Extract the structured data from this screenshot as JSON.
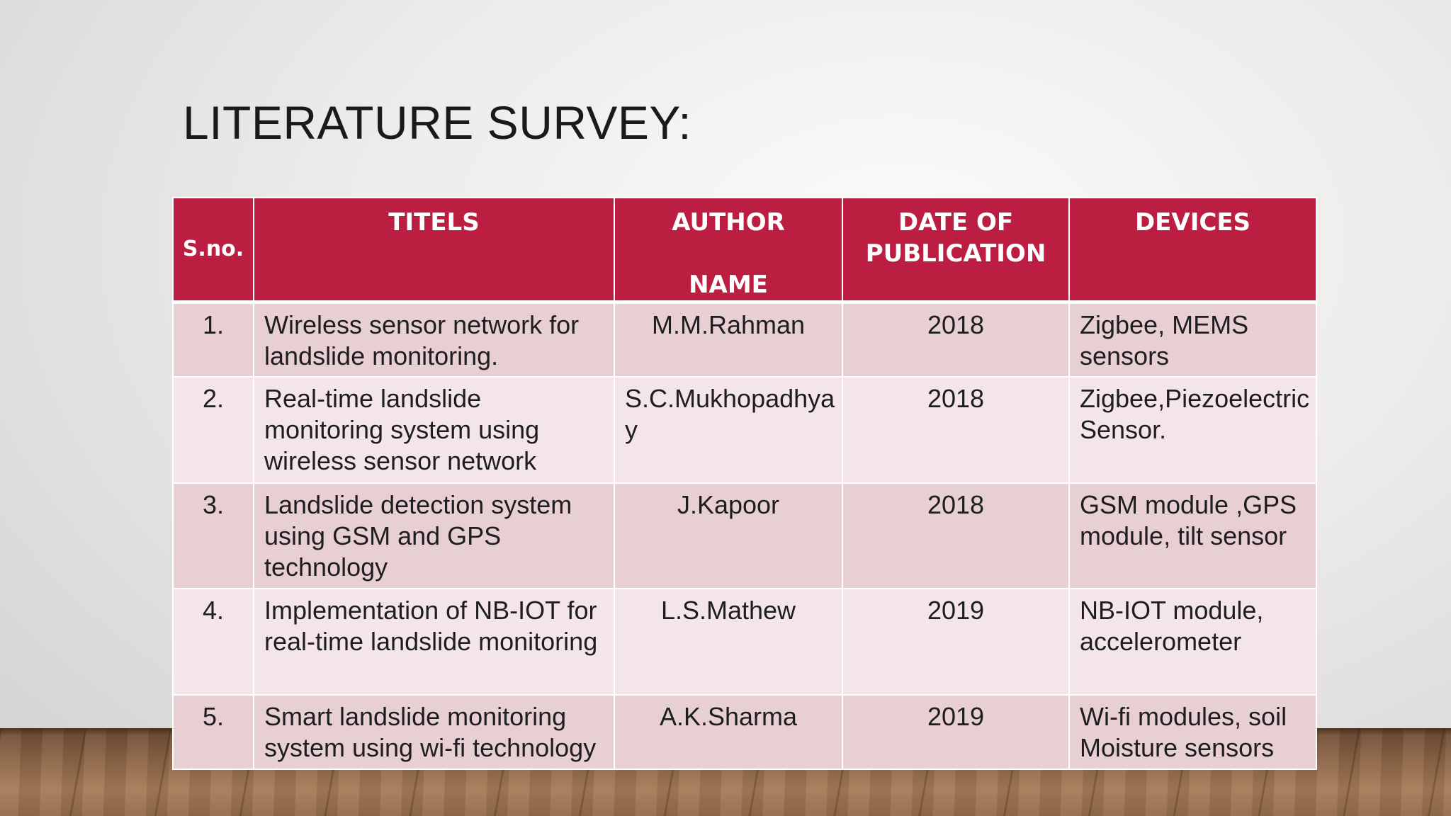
{
  "slide": {
    "title": "LITERATURE SURVEY:"
  },
  "table": {
    "headers": {
      "sno": "S.no.",
      "titles": "TITELS",
      "author_line1": "AUTHOR",
      "author_line2": "NAME",
      "date_line1": "DATE OF",
      "date_line2": "PUBLICATION",
      "devices": "DEVICES"
    },
    "rows": [
      {
        "sno": "1.",
        "title": "Wireless sensor network for landslide monitoring.",
        "author": "M.M.Rahman",
        "year": "2018",
        "devices": "Zigbee, MEMS sensors"
      },
      {
        "sno": "2.",
        "title": "Real-time landslide monitoring system using wireless sensor network",
        "author": "S.C.Mukhopadhya y",
        "year": "2018",
        "devices": "Zigbee,Piezoelectric Sensor."
      },
      {
        "sno": "3.",
        "title": "Landslide detection system using GSM and GPS technology",
        "author": "J.Kapoor",
        "year": "2018",
        "devices": "GSM module ,GPS module, tilt sensor"
      },
      {
        "sno": "4.",
        "title": "Implementation of NB-IOT for real-time landslide monitoring",
        "author": "L.S.Mathew",
        "year": "2019",
        "devices": "NB-IOT module, accelerometer"
      },
      {
        "sno": "5.",
        "title": "Smart landslide monitoring system using wi-fi technology",
        "author": "A.K.Sharma",
        "year": "2019",
        "devices": "Wi-fi modules, soil Moisture sensors"
      }
    ]
  },
  "colors": {
    "header_bg": "#bb1e40",
    "row_odd_bg": "#e8cfd4",
    "row_even_bg": "#f4e6e8"
  }
}
